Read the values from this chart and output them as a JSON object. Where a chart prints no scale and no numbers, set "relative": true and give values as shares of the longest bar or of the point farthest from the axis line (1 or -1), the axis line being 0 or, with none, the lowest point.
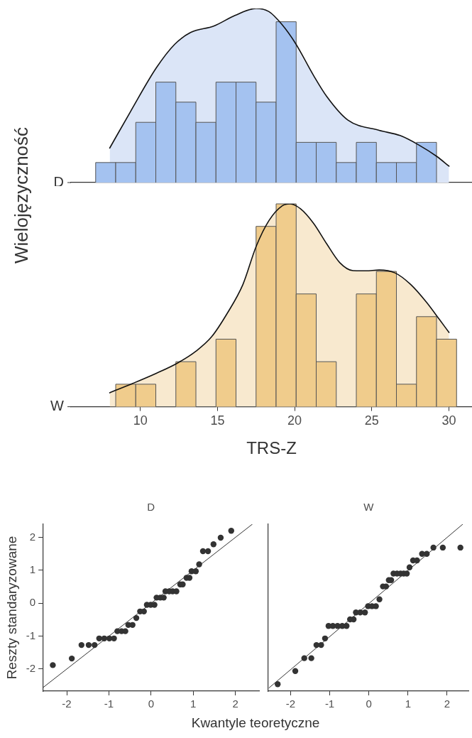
{
  "chart_data": [
    {
      "type": "histogram",
      "relative": true,
      "ylabel": "Wielojęzyczność",
      "xlim": [
        5.5,
        31.5
      ],
      "xticks": [
        10,
        15,
        20,
        25,
        30
      ],
      "tick_labels": false,
      "series": [
        {
          "type": "histogram",
          "name": "D",
          "color": "#a4c2f0",
          "bins": [
            7.1,
            8.4,
            9.7,
            11.0,
            12.3,
            13.6,
            14.9,
            16.2,
            17.5,
            18.8,
            20.1,
            21.4,
            22.7,
            24.0,
            25.3,
            26.6,
            27.9,
            29.2
          ],
          "values": [
            0.115,
            0.115,
            0.346,
            0.577,
            0.462,
            0.346,
            0.577,
            0.577,
            0.462,
            0.924,
            0.231,
            0.231,
            0.115,
            0.231,
            0.115,
            0.115,
            0.231
          ]
        },
        {
          "type": "area",
          "color": "#dbe5f7",
          "x": [
            8.01,
            9.34,
            11.04,
            12.23,
            13.25,
            14.78,
            16.13,
            17.5,
            18.34,
            19.19,
            20.04,
            21.23,
            22.08,
            23.44,
            25.48,
            26.84,
            28.03,
            29.22,
            30.01
          ],
          "values": [
            0.198,
            0.405,
            0.66,
            0.795,
            0.862,
            0.9,
            0.96,
            1.0,
            0.982,
            null,
            null,
            0.615,
            0.495,
            0.36,
            0.3,
            0.27,
            null,
            0.15,
            0.094
          ]
        },
        {
          "type": "line",
          "color": "#111111",
          "x": [
            8.01,
            9.34,
            11.04,
            12.23,
            13.25,
            14.78,
            16.13,
            17.5,
            18.34,
            19.19,
            20.04,
            21.23,
            22.08,
            23.44,
            25.48,
            26.84,
            28.03,
            29.22,
            30.01
          ],
          "values": [
            0.198,
            0.405,
            0.66,
            0.795,
            0.862,
            0.9,
            0.96,
            1.0,
            0.982,
            0.907,
            0.802,
            0.615,
            0.495,
            0.36,
            0.3,
            0.27,
            0.217,
            0.15,
            0.094
          ]
        }
      ]
    },
    {
      "type": "histogram",
      "relative": true,
      "xlabel": "TRS-Z",
      "xlim": [
        5.5,
        31.5
      ],
      "xticks": [
        10,
        15,
        20,
        25,
        30
      ],
      "tick_labels": "x",
      "series": [
        {
          "type": "histogram",
          "name": "W",
          "color": "#f0cc8c",
          "bins": [
            8.4,
            9.7,
            11.0,
            12.3,
            13.6,
            14.9,
            16.2,
            17.5,
            18.8,
            20.1,
            21.4,
            22.7,
            24.0,
            25.3,
            26.6,
            27.9,
            29.2,
            30.5
          ],
          "values": [
            0.111,
            0.111,
            0,
            0.222,
            0,
            0.333,
            0,
            0.889,
            1,
            0.556,
            0.222,
            0,
            0.556,
            0.667,
            0.111,
            0.444,
            0.333
          ]
        },
        {
          "type": "area",
          "color": "#f8e9cf",
          "x": [
            8.01,
            9.51,
            11.04,
            12.4,
            13.59,
            14.61,
            15.62,
            16.65,
            17.5,
            18.34,
            19.19,
            19.7,
            20.38,
            21.23,
            22.08,
            22.93,
            23.78,
            24.63,
            25.48,
            26.5,
            27.52,
            28.54,
            29.39,
            30.01
          ],
          "values": [
            0.069,
            0.115,
            0.165,
            0.215,
            0.273,
            0.344,
            0.459,
            0.603,
            0.789,
            0.918,
            null,
            1.0,
            0.976,
            0.904,
            0.803,
            0.71,
            0.671,
            0.67,
            0.674,
            null,
            0.603,
            0.516,
            0.43,
            0.366
          ]
        },
        {
          "type": "line",
          "color": "#111111",
          "x": [
            8.01,
            9.51,
            11.04,
            12.4,
            13.59,
            14.61,
            15.62,
            16.65,
            17.5,
            18.34,
            19.19,
            19.7,
            20.38,
            21.23,
            22.08,
            22.93,
            23.78,
            24.63,
            25.48,
            26.5,
            27.52,
            28.54,
            29.39,
            30.01
          ],
          "values": [
            0.069,
            0.115,
            0.165,
            0.215,
            0.273,
            0.344,
            0.459,
            0.603,
            0.789,
            0.918,
            0.99,
            1.0,
            0.976,
            0.904,
            0.803,
            0.71,
            0.671,
            0.67,
            0.674,
            0.66,
            0.603,
            0.516,
            0.43,
            0.366
          ]
        }
      ]
    },
    {
      "type": "scatter",
      "title": "D",
      "xlabel": "Kwantyle teoretyczne",
      "ylabel": "Reszty standaryzowane",
      "xlim": [
        -2.57,
        2.56
      ],
      "ylim": [
        -2.67,
        2.4
      ],
      "xticks": [
        -2,
        -1,
        0,
        1,
        2
      ],
      "yticks": [
        -2,
        -1,
        0,
        1,
        2
      ],
      "series": [
        {
          "type": "scatter",
          "marker": "circle",
          "color": "#333333",
          "x": [
            -2.33,
            -1.88,
            -1.65,
            -1.48,
            -1.34,
            -1.23,
            -1.11,
            -0.99,
            -0.88,
            -0.8,
            -0.7,
            -0.61,
            -0.54,
            -0.44,
            -0.35,
            -0.26,
            -0.17,
            -0.1,
            -0.01,
            0.08,
            0.13,
            0.22,
            0.3,
            0.34,
            0.43,
            0.51,
            0.6,
            0.69,
            0.75,
            0.84,
            0.91,
            0.96,
            1.06,
            1.14,
            1.23,
            1.35,
            1.48,
            1.65,
            1.9
          ],
          "values": [
            -1.88,
            -1.68,
            -1.27,
            -1.27,
            -1.27,
            -1.07,
            -1.07,
            -1.07,
            -1.07,
            -0.85,
            -0.85,
            -0.85,
            -0.66,
            -0.66,
            -0.45,
            -0.25,
            -0.25,
            -0.05,
            -0.05,
            -0.05,
            0.17,
            0.17,
            0.17,
            0.36,
            0.36,
            0.36,
            0.36,
            0.57,
            0.57,
            0.77,
            0.77,
            0.97,
            0.97,
            1.18,
            1.58,
            1.58,
            1.79,
            1.99,
            2.2
          ]
        },
        {
          "type": "line",
          "color": "#333333",
          "x": [
            -2.57,
            2.4
          ],
          "values": [
            -2.57,
            2.4
          ]
        }
      ]
    },
    {
      "type": "scatter",
      "title": "W",
      "xlim": [
        -2.57,
        2.56
      ],
      "ylim": [
        -2.67,
        2.4
      ],
      "xticks": [
        -2,
        -1,
        0,
        1,
        2
      ],
      "yticks": [
        -2,
        -1,
        0,
        1,
        2
      ],
      "tick_labels": "x",
      "series": [
        {
          "type": "scatter",
          "marker": "circle",
          "color": "#333333",
          "x": [
            -2.33,
            -1.88,
            -1.65,
            -1.47,
            -1.34,
            -1.22,
            -1.12,
            -1.03,
            -0.92,
            -0.8,
            -0.68,
            -0.57,
            -0.48,
            -0.39,
            -0.33,
            -0.22,
            -0.1,
            -0.02,
            0.08,
            0.18,
            0.27,
            0.36,
            0.44,
            0.51,
            0.57,
            0.63,
            0.72,
            0.81,
            0.89,
            0.97,
            1.04,
            1.13,
            1.23,
            1.36,
            1.48,
            1.65,
            1.89,
            2.34
          ],
          "values": [
            -2.46,
            -2.06,
            -1.67,
            -1.67,
            -1.27,
            -1.27,
            -1.07,
            -0.69,
            -0.69,
            -0.69,
            -0.69,
            -0.69,
            -0.49,
            -0.49,
            -0.28,
            -0.28,
            -0.28,
            -0.09,
            -0.09,
            -0.09,
            0.12,
            0.51,
            0.51,
            0.7,
            0.7,
            0.9,
            0.9,
            0.9,
            0.9,
            0.9,
            1.09,
            1.3,
            1.3,
            1.5,
            1.5,
            1.69,
            1.69,
            1.69
          ]
        },
        {
          "type": "line",
          "color": "#333333",
          "x": [
            -2.55,
            2.4
          ],
          "values": [
            -2.57,
            2.4
          ]
        }
      ]
    }
  ]
}
